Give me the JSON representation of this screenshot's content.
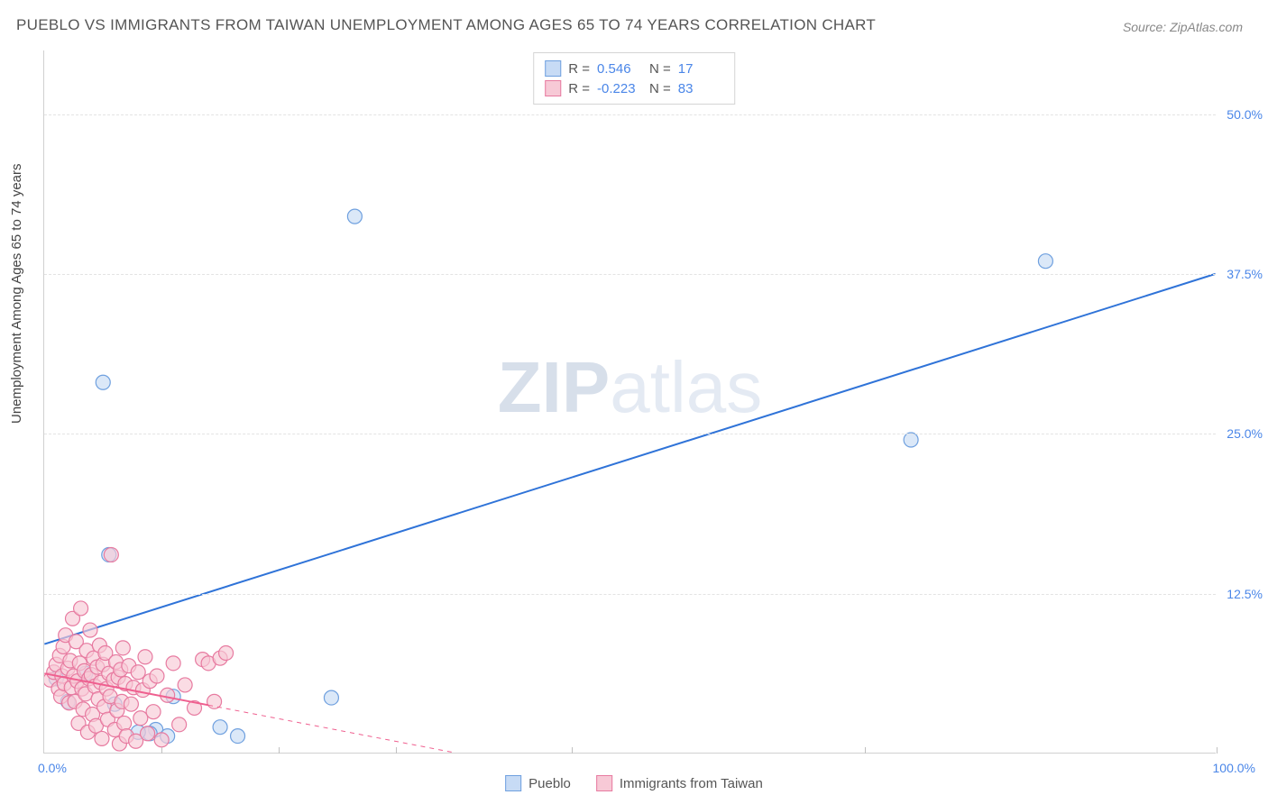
{
  "title": "PUEBLO VS IMMIGRANTS FROM TAIWAN UNEMPLOYMENT AMONG AGES 65 TO 74 YEARS CORRELATION CHART",
  "source": "Source: ZipAtlas.com",
  "ylabel": "Unemployment Among Ages 65 to 74 years",
  "watermark_thin": "ZIP",
  "watermark_bold": "atlas",
  "chart": {
    "type": "scatter",
    "xlim": [
      0,
      100
    ],
    "ylim": [
      0,
      55
    ],
    "x_tick_positions": [
      0,
      10,
      20,
      30,
      45,
      70,
      100
    ],
    "x_min_label": "0.0%",
    "x_max_label": "100.0%",
    "y_ticks": [
      {
        "v": 12.5,
        "label": "12.5%"
      },
      {
        "v": 25.0,
        "label": "25.0%"
      },
      {
        "v": 37.5,
        "label": "37.5%"
      },
      {
        "v": 50.0,
        "label": "50.0%"
      }
    ],
    "grid_color": "#e3e3e3",
    "background_color": "#ffffff",
    "marker_radius": 8,
    "marker_stroke_width": 1.2,
    "line_width": 2,
    "dash_pattern": "5,5"
  },
  "series": [
    {
      "name": "Pueblo",
      "fill": "#c7dbf5",
      "stroke": "#6fa0df",
      "line_color": "#2f73d8",
      "R": "0.546",
      "N": "17",
      "trend": {
        "x1": 0,
        "y1": 8.5,
        "x2": 100,
        "y2": 37.5,
        "solid_until_x": 100
      },
      "points": [
        {
          "x": 5.0,
          "y": 29.0
        },
        {
          "x": 26.5,
          "y": 42.0
        },
        {
          "x": 85.5,
          "y": 38.5
        },
        {
          "x": 74.0,
          "y": 24.5
        },
        {
          "x": 5.5,
          "y": 15.5
        },
        {
          "x": 24.5,
          "y": 4.3
        },
        {
          "x": 15.0,
          "y": 2.0
        },
        {
          "x": 16.5,
          "y": 1.3
        },
        {
          "x": 11.0,
          "y": 4.4
        },
        {
          "x": 6.0,
          "y": 3.8
        },
        {
          "x": 9.5,
          "y": 1.8
        },
        {
          "x": 9.0,
          "y": 1.5
        },
        {
          "x": 8.0,
          "y": 1.6
        },
        {
          "x": 10.5,
          "y": 1.3
        },
        {
          "x": 3.5,
          "y": 6.2
        },
        {
          "x": 2.0,
          "y": 4.0
        },
        {
          "x": 1.0,
          "y": 5.8
        }
      ]
    },
    {
      "name": "Immigrants from Taiwan",
      "fill": "#f7c9d6",
      "stroke": "#e77aa0",
      "line_color": "#ef5f8f",
      "R": "-0.223",
      "N": "83",
      "trend": {
        "x1": 0,
        "y1": 6.2,
        "x2": 35,
        "y2": 0.0,
        "solid_until_x": 14
      },
      "points": [
        {
          "x": 0.5,
          "y": 5.7
        },
        {
          "x": 0.8,
          "y": 6.3
        },
        {
          "x": 1.0,
          "y": 6.9
        },
        {
          "x": 1.2,
          "y": 5.0
        },
        {
          "x": 1.3,
          "y": 7.6
        },
        {
          "x": 1.4,
          "y": 4.4
        },
        {
          "x": 1.5,
          "y": 6.0
        },
        {
          "x": 1.6,
          "y": 8.3
        },
        {
          "x": 1.7,
          "y": 5.4
        },
        {
          "x": 1.8,
          "y": 9.2
        },
        {
          "x": 2.0,
          "y": 6.6
        },
        {
          "x": 2.1,
          "y": 3.9
        },
        {
          "x": 2.2,
          "y": 7.2
        },
        {
          "x": 2.3,
          "y": 5.1
        },
        {
          "x": 2.4,
          "y": 10.5
        },
        {
          "x": 2.5,
          "y": 6.0
        },
        {
          "x": 2.6,
          "y": 4.0
        },
        {
          "x": 2.7,
          "y": 8.7
        },
        {
          "x": 2.8,
          "y": 5.6
        },
        {
          "x": 2.9,
          "y": 2.3
        },
        {
          "x": 3.0,
          "y": 7.0
        },
        {
          "x": 3.1,
          "y": 11.3
        },
        {
          "x": 3.2,
          "y": 5.0
        },
        {
          "x": 3.3,
          "y": 3.4
        },
        {
          "x": 3.4,
          "y": 6.4
        },
        {
          "x": 3.5,
          "y": 4.6
        },
        {
          "x": 3.6,
          "y": 8.0
        },
        {
          "x": 3.7,
          "y": 1.6
        },
        {
          "x": 3.8,
          "y": 5.8
        },
        {
          "x": 3.9,
          "y": 9.6
        },
        {
          "x": 4.0,
          "y": 6.1
        },
        {
          "x": 4.1,
          "y": 3.0
        },
        {
          "x": 4.2,
          "y": 7.4
        },
        {
          "x": 4.3,
          "y": 5.2
        },
        {
          "x": 4.4,
          "y": 2.1
        },
        {
          "x": 4.5,
          "y": 6.7
        },
        {
          "x": 4.6,
          "y": 4.2
        },
        {
          "x": 4.7,
          "y": 8.4
        },
        {
          "x": 4.8,
          "y": 5.5
        },
        {
          "x": 4.9,
          "y": 1.1
        },
        {
          "x": 5.0,
          "y": 6.9
        },
        {
          "x": 5.1,
          "y": 3.6
        },
        {
          "x": 5.2,
          "y": 7.8
        },
        {
          "x": 5.3,
          "y": 5.0
        },
        {
          "x": 5.4,
          "y": 2.6
        },
        {
          "x": 5.5,
          "y": 6.2
        },
        {
          "x": 5.6,
          "y": 4.4
        },
        {
          "x": 5.7,
          "y": 15.5
        },
        {
          "x": 5.9,
          "y": 5.7
        },
        {
          "x": 6.0,
          "y": 1.8
        },
        {
          "x": 6.1,
          "y": 7.1
        },
        {
          "x": 6.2,
          "y": 3.3
        },
        {
          "x": 6.3,
          "y": 5.9
        },
        {
          "x": 6.4,
          "y": 0.7
        },
        {
          "x": 6.5,
          "y": 6.5
        },
        {
          "x": 6.6,
          "y": 4.0
        },
        {
          "x": 6.7,
          "y": 8.2
        },
        {
          "x": 6.8,
          "y": 2.3
        },
        {
          "x": 6.9,
          "y": 5.4
        },
        {
          "x": 7.0,
          "y": 1.3
        },
        {
          "x": 7.2,
          "y": 6.8
        },
        {
          "x": 7.4,
          "y": 3.8
        },
        {
          "x": 7.6,
          "y": 5.1
        },
        {
          "x": 7.8,
          "y": 0.9
        },
        {
          "x": 8.0,
          "y": 6.3
        },
        {
          "x": 8.2,
          "y": 2.7
        },
        {
          "x": 8.4,
          "y": 4.9
        },
        {
          "x": 8.6,
          "y": 7.5
        },
        {
          "x": 8.8,
          "y": 1.5
        },
        {
          "x": 9.0,
          "y": 5.6
        },
        {
          "x": 9.3,
          "y": 3.2
        },
        {
          "x": 9.6,
          "y": 6.0
        },
        {
          "x": 10.0,
          "y": 1.0
        },
        {
          "x": 10.5,
          "y": 4.5
        },
        {
          "x": 11.0,
          "y": 7.0
        },
        {
          "x": 11.5,
          "y": 2.2
        },
        {
          "x": 12.0,
          "y": 5.3
        },
        {
          "x": 12.8,
          "y": 3.5
        },
        {
          "x": 13.5,
          "y": 7.3
        },
        {
          "x": 14.0,
          "y": 7.0
        },
        {
          "x": 14.5,
          "y": 4.0
        },
        {
          "x": 15.0,
          "y": 7.4
        },
        {
          "x": 15.5,
          "y": 7.8
        }
      ]
    }
  ],
  "top_legend": {
    "r_label": "R  =",
    "n_label": "N  ="
  },
  "bottom_legend": {
    "items": [
      "Pueblo",
      "Immigrants from Taiwan"
    ]
  }
}
